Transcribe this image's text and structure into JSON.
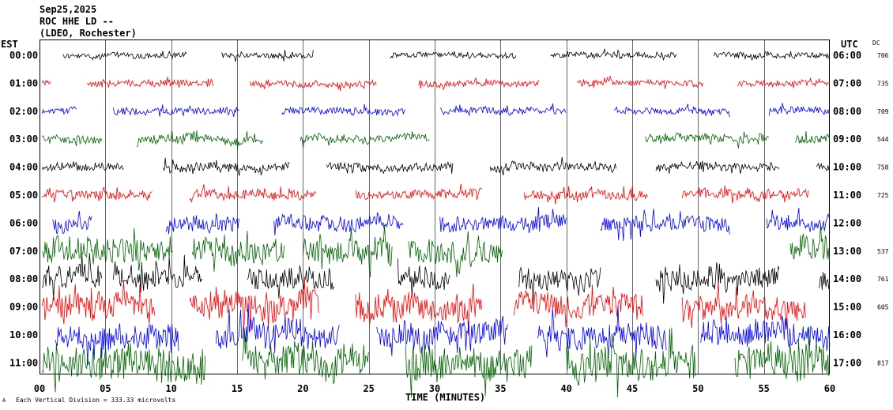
{
  "header": {
    "date": "Sep25,2025",
    "station_line": "ROC HHE LD --",
    "network_line": "(LDEO, Rochester)"
  },
  "labels": {
    "left_timezone": "EST",
    "right_timezone": "UTC",
    "dc_label": "DC",
    "xlabel": "TIME (MINUTES)",
    "scale_note": "Each Vertical Division = 333.33 microvolts",
    "corner_mark": "A"
  },
  "colors": {
    "black": "#000000",
    "red": "#ff0000",
    "blue": "#0000ff",
    "green": "#006400",
    "grid": "#000000"
  },
  "chart_data": {
    "type": "line",
    "title": "ROC HHE LD --",
    "subtitle": "(LDEO, Rochester)",
    "xlabel": "TIME (MINUTES)",
    "xlim": [
      0,
      60
    ],
    "x_ticks": [
      "00",
      "05",
      "10",
      "15",
      "20",
      "25",
      "30",
      "35",
      "40",
      "45",
      "50",
      "55",
      "60"
    ],
    "grid": true,
    "rows": [
      {
        "est": "00:00",
        "utc": "06:00",
        "dc": "706",
        "color": "black",
        "amplitude": 0.22,
        "segments": [
          [
            1.8,
            11.2
          ],
          [
            13.8,
            20.8
          ],
          [
            26.6,
            36.2
          ],
          [
            38.8,
            48.4
          ],
          [
            51.2,
            60
          ]
        ]
      },
      {
        "est": "01:00",
        "utc": "07:00",
        "dc": "735",
        "color": "red",
        "amplitude": 0.24,
        "segments": [
          [
            0.2,
            0.9
          ],
          [
            3.6,
            13.2
          ],
          [
            16.0,
            25.6
          ],
          [
            28.8,
            38.0
          ],
          [
            40.8,
            50.4
          ],
          [
            53.0,
            60
          ]
        ]
      },
      {
        "est": "02:00",
        "utc": "08:00",
        "dc": "709",
        "color": "blue",
        "amplitude": 0.28,
        "segments": [
          [
            0.2,
            2.8
          ],
          [
            5.6,
            15.2
          ],
          [
            18.4,
            27.8
          ],
          [
            30.4,
            40.0
          ],
          [
            43.6,
            52.4
          ],
          [
            55.4,
            60
          ]
        ]
      },
      {
        "est": "03:00",
        "utc": "09:00",
        "dc": "544",
        "color": "green",
        "amplitude": 0.32,
        "segments": [
          [
            0.2,
            4.8
          ],
          [
            7.4,
            17.0
          ],
          [
            19.8,
            29.6
          ],
          [
            46.0,
            55.4
          ],
          [
            57.4,
            60
          ]
        ]
      },
      {
        "est": "04:00",
        "utc": "10:00",
        "dc": "758",
        "color": "black",
        "amplitude": 0.32,
        "segments": [
          [
            0.2,
            6.4
          ],
          [
            9.4,
            19.0
          ],
          [
            21.8,
            31.4
          ],
          [
            34.2,
            43.8
          ],
          [
            46.8,
            56.2
          ],
          [
            59.0,
            60
          ]
        ]
      },
      {
        "est": "05:00",
        "utc": "11:00",
        "dc": "725",
        "color": "red",
        "amplitude": 0.36,
        "segments": [
          [
            0.2,
            8.6
          ],
          [
            11.4,
            21.0
          ],
          [
            24.0,
            33.6
          ],
          [
            36.8,
            46.2
          ],
          [
            48.8,
            58.4
          ]
        ]
      },
      {
        "est": "06:00",
        "utc": "12:00",
        "dc": "",
        "color": "blue",
        "amplitude": 0.6,
        "segments": [
          [
            1.0,
            4.0
          ],
          [
            9.6,
            15.2
          ],
          [
            17.8,
            27.6
          ],
          [
            30.4,
            40.0
          ],
          [
            42.6,
            52.4
          ],
          [
            55.2,
            60
          ]
        ]
      },
      {
        "est": "07:00",
        "utc": "13:00",
        "dc": "537",
        "color": "green",
        "amplitude": 0.95,
        "segments": [
          [
            0.2,
            10.2
          ],
          [
            11.6,
            18.6
          ],
          [
            20.0,
            26.8
          ],
          [
            28.0,
            35.2
          ],
          [
            57.0,
            60
          ]
        ]
      },
      {
        "est": "08:00",
        "utc": "14:00",
        "dc": "761",
        "color": "black",
        "amplitude": 0.85,
        "segments": [
          [
            0.2,
            4.8
          ],
          [
            5.6,
            12.4
          ],
          [
            15.8,
            22.4
          ],
          [
            27.2,
            31.2
          ],
          [
            36.4,
            42.6
          ],
          [
            46.8,
            56.2
          ],
          [
            59.2,
            60
          ]
        ]
      },
      {
        "est": "09:00",
        "utc": "15:00",
        "dc": "605",
        "color": "red",
        "amplitude": 0.95,
        "segments": [
          [
            0.2,
            8.8
          ],
          [
            11.4,
            21.2
          ],
          [
            24.0,
            33.6
          ],
          [
            36.0,
            45.8
          ],
          [
            48.8,
            58.2
          ]
        ]
      },
      {
        "est": "10:00",
        "utc": "16:00",
        "dc": "",
        "color": "blue",
        "amplitude": 0.95,
        "segments": [
          [
            1.2,
            10.6
          ],
          [
            13.4,
            22.8
          ],
          [
            25.6,
            35.6
          ],
          [
            37.8,
            47.6
          ],
          [
            50.2,
            60
          ]
        ]
      },
      {
        "est": "11:00",
        "utc": "17:00",
        "dc": "817",
        "color": "green",
        "amplitude": 1.3,
        "segments": [
          [
            0.2,
            12.6
          ],
          [
            15.4,
            25.0
          ],
          [
            27.8,
            37.4
          ],
          [
            40.0,
            49.8
          ],
          [
            52.8,
            60
          ]
        ]
      }
    ]
  }
}
